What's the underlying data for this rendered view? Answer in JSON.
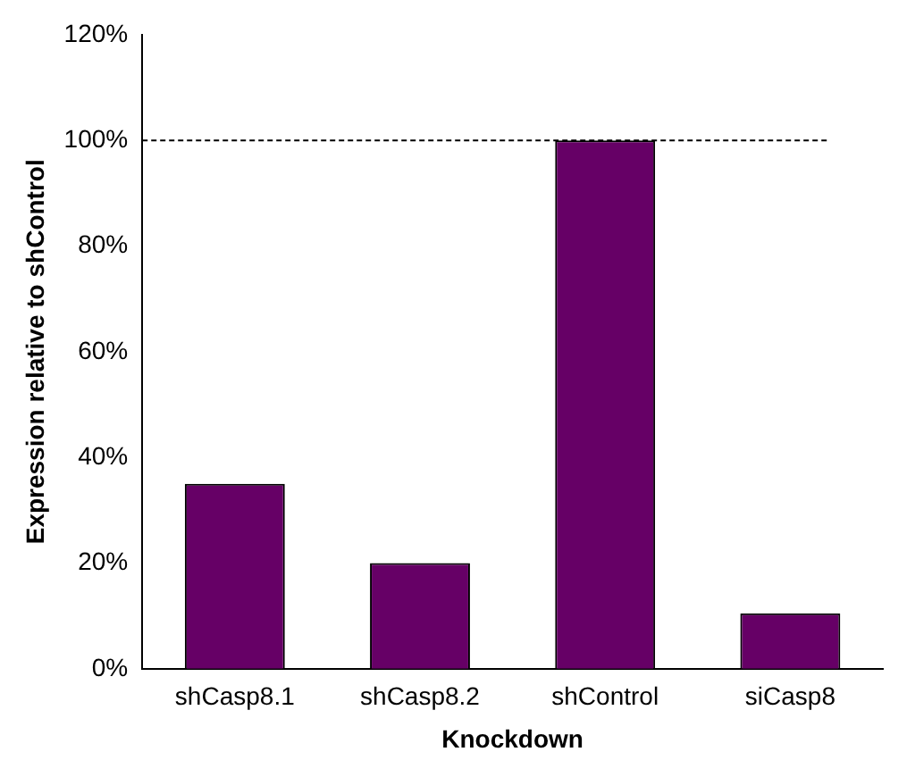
{
  "chart_data": {
    "type": "bar",
    "xlabel": "Knockdown",
    "ylabel": "Expression relative to shControl",
    "categories": [
      "shCasp8.1",
      "shCasp8.2",
      "shControl",
      "siCasp8"
    ],
    "values": [
      35,
      20,
      100,
      10.5
    ],
    "color": "#660066",
    "ylim": [
      0,
      120
    ],
    "yticks": [
      {
        "value": 0,
        "label": "0%"
      },
      {
        "value": 20,
        "label": "20%"
      },
      {
        "value": 40,
        "label": "40%"
      },
      {
        "value": 60,
        "label": "60%"
      },
      {
        "value": 80,
        "label": "80%"
      },
      {
        "value": 100,
        "label": "100%"
      },
      {
        "value": 120,
        "label": "120%"
      }
    ],
    "ref_lines": [
      {
        "axis": "y",
        "value": 100,
        "color": "#000000",
        "line_style": "dashed"
      }
    ],
    "grid": false,
    "legend": false
  }
}
